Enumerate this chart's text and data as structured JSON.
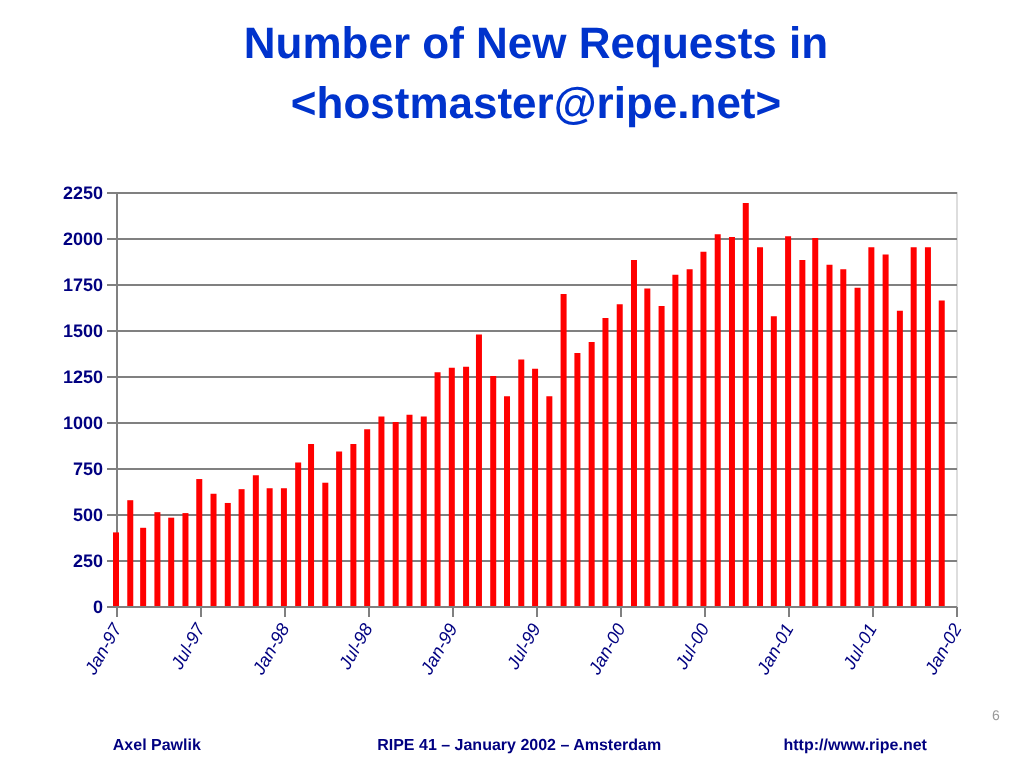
{
  "chart_data": {
    "type": "bar",
    "title": [
      "Number of New Requests in",
      "<hostmaster@ripe.net>"
    ],
    "x": [
      "1997-01",
      "1997-02",
      "1997-03",
      "1997-04",
      "1997-05",
      "1997-06",
      "1997-07",
      "1997-08",
      "1997-09",
      "1997-10",
      "1997-11",
      "1997-12",
      "1998-01",
      "1998-02",
      "1998-03",
      "1998-04",
      "1998-05",
      "1998-06",
      "1998-07",
      "1998-08",
      "1998-09",
      "1998-10",
      "1998-11",
      "1998-12",
      "1999-01",
      "1999-02",
      "1999-03",
      "1999-04",
      "1999-05",
      "1999-06",
      "1999-07",
      "1999-08",
      "1999-09",
      "1999-10",
      "1999-11",
      "1999-12",
      "2000-01",
      "2000-02",
      "2000-03",
      "2000-04",
      "2000-05",
      "2000-06",
      "2000-07",
      "2000-08",
      "2000-09",
      "2000-10",
      "2000-11",
      "2000-12",
      "2001-01",
      "2001-02",
      "2001-03",
      "2001-04",
      "2001-05",
      "2001-06",
      "2001-07",
      "2001-08",
      "2001-09",
      "2001-10",
      "2001-11",
      "2001-12"
    ],
    "values": [
      400,
      575,
      425,
      510,
      480,
      505,
      690,
      610,
      560,
      635,
      710,
      640,
      640,
      780,
      880,
      670,
      840,
      880,
      960,
      1030,
      1000,
      1040,
      1030,
      1270,
      1295,
      1300,
      1475,
      1250,
      1140,
      1340,
      1290,
      1140,
      1695,
      1375,
      1435,
      1565,
      1640,
      1880,
      1725,
      1630,
      1800,
      1830,
      1925,
      2020,
      2005,
      2190,
      1950,
      1575,
      2010,
      1880,
      2000,
      1855,
      1830,
      1730,
      1950,
      1910,
      1605,
      1950,
      1950,
      1660
    ],
    "color": "#ff0000",
    "ylim": [
      0,
      2250
    ],
    "yticks": [
      0,
      250,
      500,
      750,
      1000,
      1250,
      1500,
      1750,
      2000,
      2250
    ],
    "xlim": [
      "1997-01",
      "2002-01"
    ],
    "xticks": [
      {
        "value": "1997-01",
        "label": "Jan-97"
      },
      {
        "value": "1997-07",
        "label": "Jul-97"
      },
      {
        "value": "1998-01",
        "label": "Jan-98"
      },
      {
        "value": "1998-07",
        "label": "Jul-98"
      },
      {
        "value": "1999-01",
        "label": "Jan-99"
      },
      {
        "value": "1999-07",
        "label": "Jul-99"
      },
      {
        "value": "2000-01",
        "label": "Jan-00"
      },
      {
        "value": "2000-07",
        "label": "Jul-00"
      },
      {
        "value": "2001-01",
        "label": "Jan-01"
      },
      {
        "value": "2001-07",
        "label": "Jul-01"
      },
      {
        "value": "2002-01",
        "label": "Jan-02"
      }
    ],
    "grid": "y",
    "annotations": [
      "Axel Pawlik",
      "RIPE 41 – January 2002 – Amsterdam",
      "http://www.ripe.net",
      "6"
    ]
  }
}
